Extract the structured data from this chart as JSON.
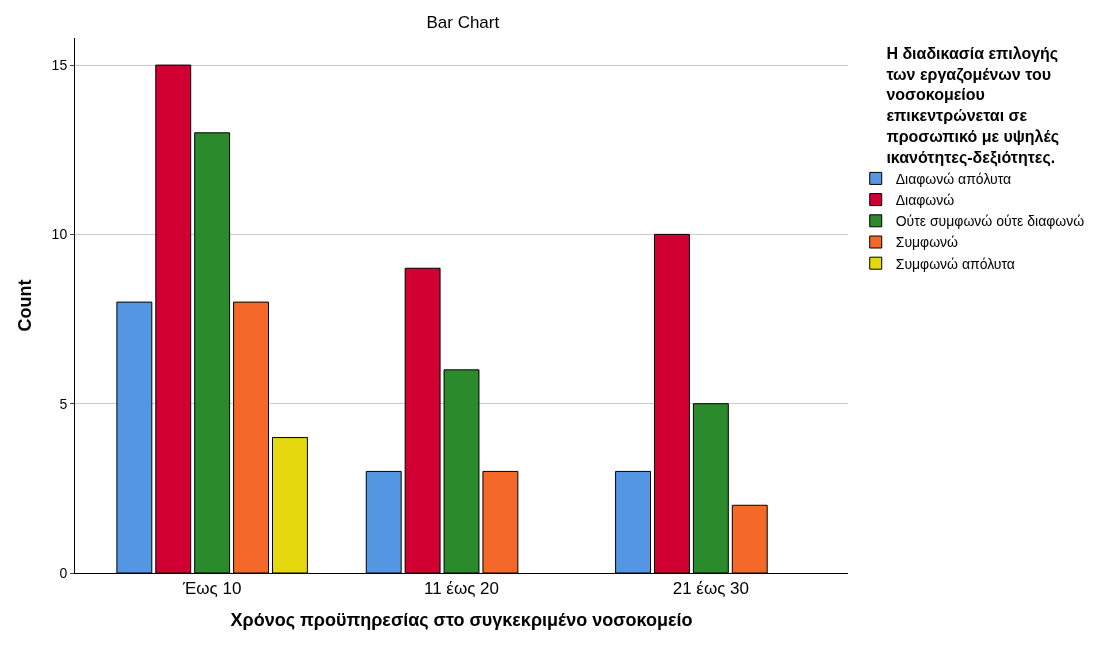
{
  "chart_data": {
    "type": "bar",
    "title": "Bar Chart",
    "xlabel": "Χρόνος προϋπηρεσίας στο συγκεκριμένο νοσοκομείο",
    "ylabel": "Count",
    "legend_title": "Η διαδικασία επιλογής των εργαζομένων του νοσοκομείου επικεντρώνεται σε προσωπικό με υψηλές ικανότητες-δεξιότητες.",
    "categories": [
      "Έως 10",
      "11 έως 20",
      "21 έως 30"
    ],
    "series": [
      {
        "name": "Διαφωνώ απόλυτα",
        "color": "#5596e3",
        "values": [
          8,
          3,
          3
        ]
      },
      {
        "name": "Διαφωνώ",
        "color": "#d20032",
        "values": [
          15,
          9,
          10
        ]
      },
      {
        "name": "Ούτε συμφωνώ ούτε διαφωνώ",
        "color": "#2b8a2b",
        "values": [
          13,
          6,
          5
        ]
      },
      {
        "name": "Συμφωνώ",
        "color": "#f4692a",
        "values": [
          8,
          3,
          2
        ]
      },
      {
        "name": "Συμφωνώ απόλυτα",
        "color": "#e5d80e",
        "values": [
          4,
          null,
          null
        ]
      }
    ],
    "ylim": [
      0,
      15.8
    ],
    "yticks": [
      0,
      5,
      10,
      15
    ],
    "grid": "y",
    "legend": "right"
  }
}
